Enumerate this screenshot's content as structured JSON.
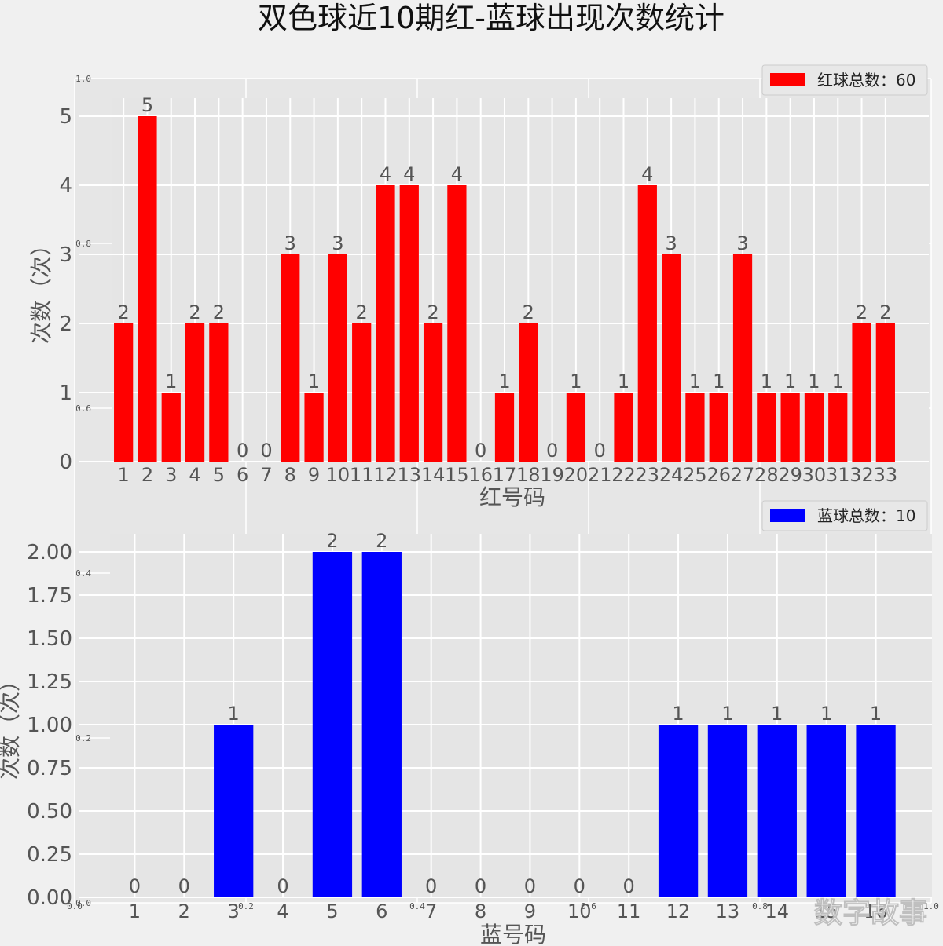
{
  "title": "双色球近10期红-蓝球出现次数统计",
  "watermark": "数字故事",
  "background_axis": {
    "y_ticks": [
      "1.0",
      "0.8",
      "0.6",
      "0.4",
      "0.2",
      "0.0"
    ],
    "x_ticks": [
      "0.0",
      "0.2",
      "0.4",
      "0.6",
      "0.8",
      "1.0"
    ]
  },
  "colors": {
    "red": "#ff0000",
    "blue": "#0000ff",
    "plot_bg": "#e5e5e5",
    "figure_bg": "#f0f0f0",
    "grid": "#ffffff"
  },
  "chart_data": [
    {
      "type": "bar",
      "title": "",
      "xlabel": "红号码",
      "ylabel": "次数（次）",
      "legend": "红球总数：60",
      "legend_position": "top-right",
      "color": "#ff0000",
      "grid": true,
      "ylim": [
        0,
        5
      ],
      "y_ticks": [
        "0",
        "1",
        "2",
        "3",
        "4",
        "5"
      ],
      "categories": [
        "1",
        "2",
        "3",
        "4",
        "5",
        "6",
        "7",
        "8",
        "9",
        "10",
        "11",
        "12",
        "13",
        "14",
        "15",
        "16",
        "17",
        "18",
        "19",
        "20",
        "21",
        "22",
        "23",
        "24",
        "25",
        "26",
        "27",
        "28",
        "29",
        "30",
        "31",
        "32",
        "33"
      ],
      "values": [
        2,
        5,
        1,
        2,
        2,
        0,
        0,
        3,
        1,
        3,
        2,
        4,
        4,
        2,
        4,
        0,
        1,
        2,
        0,
        1,
        0,
        1,
        4,
        3,
        1,
        1,
        3,
        1,
        1,
        1,
        1,
        2,
        2
      ],
      "value_labels": [
        "2",
        "5",
        "1",
        "2",
        "2",
        "0",
        "0",
        "3",
        "1",
        "3",
        "2",
        "4",
        "4",
        "2",
        "4",
        "0",
        "1",
        "2",
        "0",
        "1",
        "0",
        "1",
        "4",
        "3",
        "1",
        "1",
        "3",
        "1",
        "1",
        "1",
        "1",
        "2",
        "2"
      ]
    },
    {
      "type": "bar",
      "title": "",
      "xlabel": "蓝号码",
      "ylabel": "次数（次）",
      "legend": "蓝球总数：10",
      "legend_position": "top-right",
      "color": "#0000ff",
      "grid": true,
      "ylim": [
        0,
        2
      ],
      "y_ticks": [
        "0.00",
        "0.25",
        "0.50",
        "0.75",
        "1.00",
        "1.25",
        "1.50",
        "1.75",
        "2.00"
      ],
      "categories": [
        "1",
        "2",
        "3",
        "4",
        "5",
        "6",
        "7",
        "8",
        "9",
        "10",
        "11",
        "12",
        "13",
        "14",
        "15",
        "16"
      ],
      "values": [
        0,
        0,
        1,
        0,
        2,
        2,
        0,
        0,
        0,
        0,
        0,
        1,
        1,
        1,
        1,
        1
      ],
      "value_labels": [
        "0",
        "0",
        "1",
        "0",
        "2",
        "2",
        "0",
        "0",
        "0",
        "0",
        "0",
        "1",
        "1",
        "1",
        "1",
        "1"
      ]
    }
  ]
}
